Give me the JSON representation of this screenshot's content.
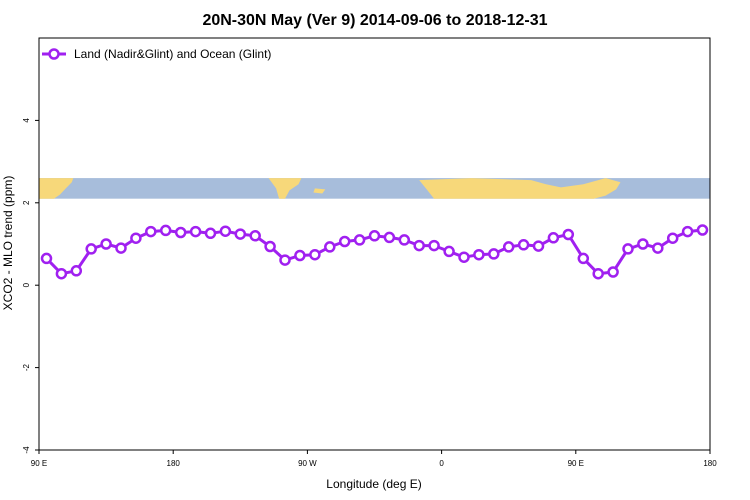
{
  "chart_data": {
    "type": "line",
    "title": "20N-30N May (Ver 9)   2014-09-06 to 2018-12-31",
    "xlabel": "Longitude (deg E)",
    "ylabel": "XCO2 - MLO trend (ppm)",
    "x_ticks": [
      {
        "value": 90,
        "label": "90 E"
      },
      {
        "value": 180,
        "label": "180"
      },
      {
        "value": 270,
        "label": "90 W"
      },
      {
        "value": 360,
        "label": "0"
      },
      {
        "value": 450,
        "label": "90 E"
      },
      {
        "value": 540,
        "label": "180"
      }
    ],
    "y_ticks": [
      {
        "value": -4,
        "label": "-4"
      },
      {
        "value": -2,
        "label": "-2"
      },
      {
        "value": 0,
        "label": "0"
      },
      {
        "value": 2,
        "label": "2"
      },
      {
        "value": 4,
        "label": "4"
      }
    ],
    "xlim": [
      90,
      540
    ],
    "ylim": [
      -4,
      6
    ],
    "legend": {
      "position": "top-left",
      "entries": [
        {
          "label": "Land (Nadir&Glint) and Ocean (Glint)",
          "color": "#a020f0"
        }
      ]
    },
    "series": [
      {
        "name": "Land (Nadir&Glint) and Ocean (Glint)",
        "color": "#a020f0",
        "x": [
          95,
          105,
          115,
          125,
          135,
          145,
          155,
          165,
          175,
          185,
          195,
          205,
          215,
          225,
          235,
          245,
          255,
          265,
          275,
          285,
          295,
          305,
          315,
          325,
          335,
          345,
          355,
          365,
          375,
          385,
          395,
          405,
          415,
          425,
          435,
          445,
          455,
          465,
          475,
          485,
          495,
          505,
          515,
          525,
          535
        ],
        "values": [
          0.65,
          0.28,
          0.35,
          0.88,
          1.0,
          0.9,
          1.14,
          1.3,
          1.33,
          1.28,
          1.3,
          1.26,
          1.31,
          1.24,
          1.2,
          0.94,
          0.61,
          0.72,
          0.74,
          0.93,
          1.06,
          1.1,
          1.2,
          1.16,
          1.1,
          0.96,
          0.96,
          0.82,
          0.68,
          0.74,
          0.76,
          0.93,
          0.98,
          0.95,
          1.15,
          1.23,
          0.65,
          0.28,
          0.32,
          0.88,
          1.0,
          0.9,
          1.14,
          1.3,
          1.34
        ]
      }
    ]
  },
  "map_strip": {
    "y_range": [
      2.1,
      2.6
    ],
    "ocean_color": "#a7bddb",
    "land_color": "#f7d87a"
  }
}
